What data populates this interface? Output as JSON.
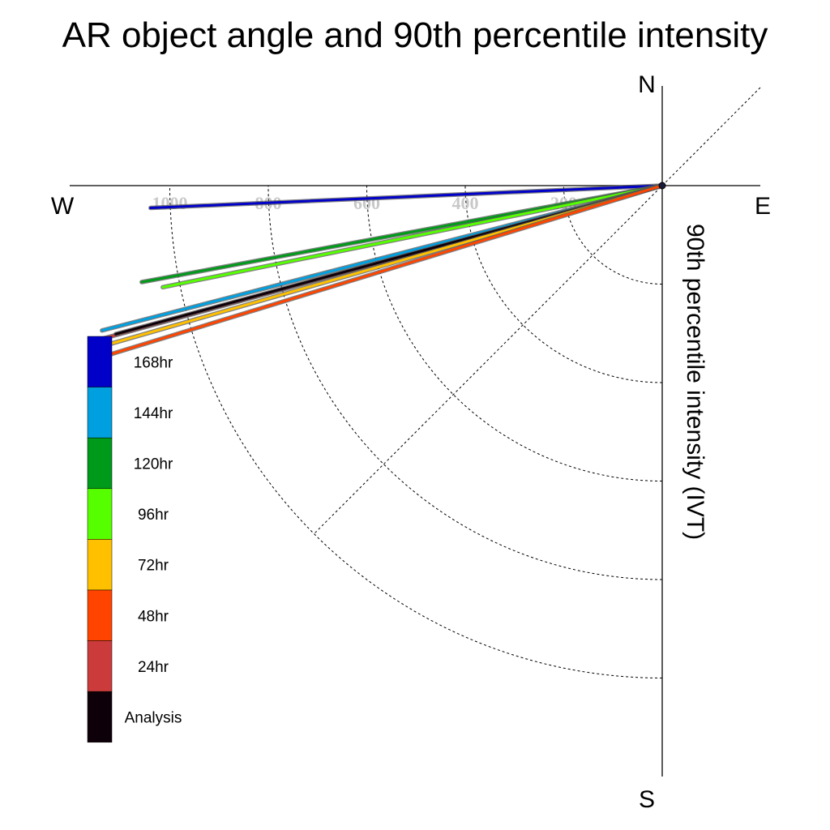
{
  "chart_data": {
    "type": "polar-line",
    "title": "AR object angle and 90th percentile intensity",
    "radial_axis_label": "90th percentile intensity (IVT)",
    "compass": {
      "north": "N",
      "east": "E",
      "south": "S",
      "west": "W"
    },
    "radial_ticks": [
      200,
      400,
      600,
      800,
      1000
    ],
    "radial_max": 1200,
    "angle_convention": "degrees clockwise from North",
    "legend_placement": "bottom-left",
    "series": [
      {
        "name": "168hr",
        "color": "#0000c8",
        "angle_deg": 267.5,
        "intensity": 1040
      },
      {
        "name": "120hr",
        "color": "#009a1a",
        "angle_deg": 259.5,
        "intensity": 1075
      },
      {
        "name": "96hr",
        "color": "#55ff00",
        "angle_deg": 258.5,
        "intensity": 1035
      },
      {
        "name": "144hr",
        "color": "#00a0e0",
        "angle_deg": 255.5,
        "intensity": 1175
      },
      {
        "name": "24hr",
        "color": "#cc3b3b",
        "angle_deg": 254.7,
        "intensity": 1180
      },
      {
        "name": "Analysis",
        "color": "#0e0008",
        "angle_deg": 254.8,
        "intensity": 1150
      },
      {
        "name": "72hr",
        "color": "#ffc000",
        "angle_deg": 254.0,
        "intensity": 1185
      },
      {
        "name": "48hr",
        "color": "#ff4400",
        "angle_deg": 253.0,
        "intensity": 1190
      }
    ]
  },
  "legend": {
    "items": [
      {
        "label": "168hr",
        "color": "#0000c8"
      },
      {
        "label": "144hr",
        "color": "#00a0e0"
      },
      {
        "label": "120hr",
        "color": "#009a1a"
      },
      {
        "label": "96hr",
        "color": "#55ff00"
      },
      {
        "label": "72hr",
        "color": "#ffc000"
      },
      {
        "label": "48hr",
        "color": "#ff4400"
      },
      {
        "label": "24hr",
        "color": "#cc3b3b"
      },
      {
        "label": "Analysis",
        "color": "#0e0008"
      }
    ]
  }
}
